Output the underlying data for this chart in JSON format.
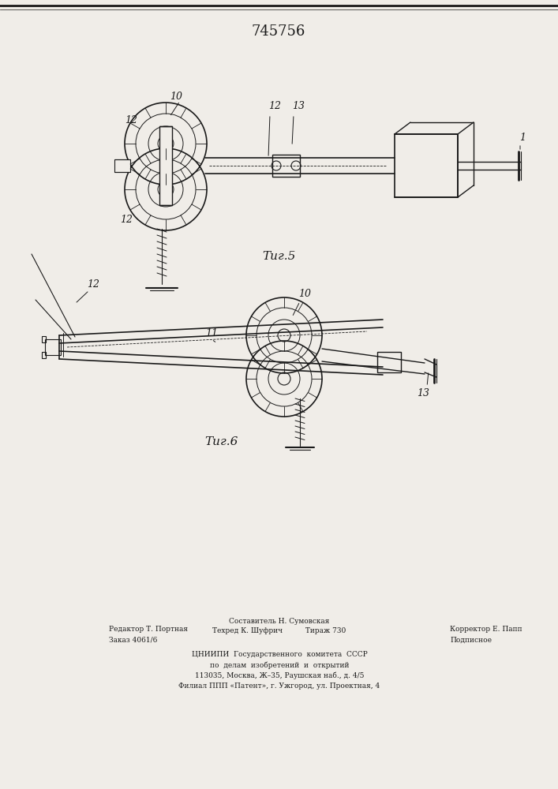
{
  "title_number": "745756",
  "fig5_label": "Τиг.5",
  "fig6_label": "Τиг.6",
  "bg_color": "#f0ede8",
  "line_color": "#1a1a1a",
  "footer_lines": [
    [
      "Редактор Т. Портная",
      "Составитель Н. Сумовская",
      "Корректор Е. Папп"
    ],
    [
      "Заказ 4061/6",
      "Техред К. Шуфрич       Тираж 730",
      "Подписное"
    ]
  ],
  "footer_center_lines": [
    "ЦНИИПИ  Государственного  комитета  СССР",
    "по  делам  изобретений  и  открытий",
    "113035, Москва, Ж–35, Раушская наб., д. 4/5",
    "Филиал ППП «Патент», г. Ужгород, ул. Проектная, 4"
  ]
}
